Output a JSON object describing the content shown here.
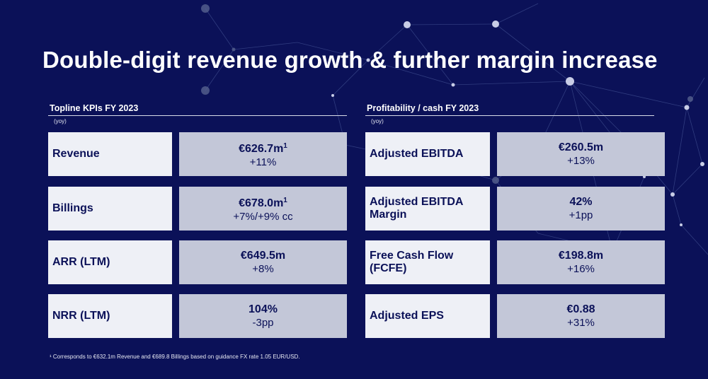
{
  "title": "Double-digit revenue growth & further margin increase",
  "left_section": {
    "heading": "Topline KPIs FY 2023",
    "yoy": "(yoy)",
    "rows": [
      {
        "label": "Revenue",
        "value": "€626.7m",
        "sup": "1",
        "change": "+11%"
      },
      {
        "label": "Billings",
        "value": "€678.0m",
        "sup": "1",
        "change": "+7%/+9% cc"
      },
      {
        "label": "ARR (LTM)",
        "value": "€649.5m",
        "sup": "",
        "change": "+8%"
      },
      {
        "label": "NRR (LTM)",
        "value": "104%",
        "sup": "",
        "change": "-3pp"
      }
    ]
  },
  "right_section": {
    "heading": "Profitability / cash FY 2023",
    "yoy": "(yoy)",
    "rows": [
      {
        "label": "Adjusted EBITDA",
        "value": "€260.5m",
        "sup": "",
        "change": "+13%"
      },
      {
        "label": "Adjusted EBITDA Margin",
        "value": "42%",
        "sup": "",
        "change": "+1pp"
      },
      {
        "label": "Free Cash Flow (FCFE)",
        "value": "€198.8m",
        "sup": "",
        "change": "+16%"
      },
      {
        "label": "Adjusted EPS",
        "value": "€0.88",
        "sup": "",
        "change": "+31%"
      }
    ]
  },
  "footnote": "¹ Corresponds to €632.1m Revenue and €689.8 Billings based on guidance FX rate 1.05 EUR/USD.",
  "colors": {
    "background": "#0b1158",
    "label_box": "#eef0f6",
    "value_box": "#c3c7d8",
    "text_dark": "#0b1158"
  }
}
